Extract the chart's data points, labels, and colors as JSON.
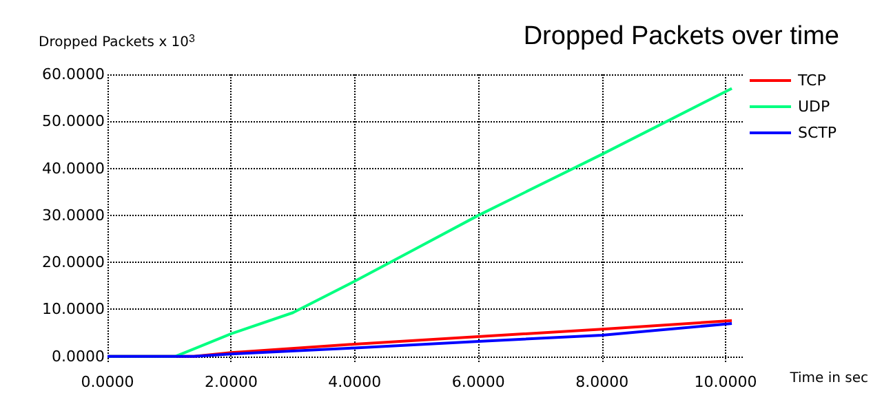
{
  "chart_data": {
    "type": "line",
    "title": "Dropped Packets over time",
    "xlabel": "Time in sec",
    "ylabel": "Dropped Packets x 10$^{3}$",
    "series": [
      {
        "name": "TCP",
        "color": "#ff0000",
        "x": [
          0,
          1.4,
          2,
          4,
          6,
          8,
          10.1
        ],
        "values": [
          0,
          0,
          0.8,
          2.6,
          4.2,
          5.8,
          7.6
        ]
      },
      {
        "name": "UDP",
        "color": "#00ff80",
        "x": [
          0,
          1.1,
          2,
          3,
          4,
          5,
          6,
          8,
          10.1
        ],
        "values": [
          0,
          0,
          4.8,
          9.3,
          16,
          23,
          30,
          43,
          57
        ]
      },
      {
        "name": "SCTP",
        "color": "#0000ff",
        "x": [
          0,
          1.4,
          2,
          4,
          6,
          8,
          10.1
        ],
        "values": [
          0,
          0,
          0.5,
          1.8,
          3.2,
          4.5,
          7
        ]
      }
    ],
    "xlim": [
      0,
      10.3
    ],
    "ylim": [
      -1.5,
      60
    ],
    "xticks": [
      {
        "value": 0,
        "label": "0.0000"
      },
      {
        "value": 2,
        "label": "2.0000"
      },
      {
        "value": 4,
        "label": "4.0000"
      },
      {
        "value": 6,
        "label": "6.0000"
      },
      {
        "value": 8,
        "label": "8.0000"
      },
      {
        "value": 10,
        "label": "10.0000"
      }
    ],
    "yticks": [
      {
        "value": 0,
        "label": "0.0000"
      },
      {
        "value": 10,
        "label": "10.0000"
      },
      {
        "value": 20,
        "label": "20.0000"
      },
      {
        "value": 30,
        "label": "30.0000"
      },
      {
        "value": 40,
        "label": "40.0000"
      },
      {
        "value": 50,
        "label": "50.0000"
      },
      {
        "value": 60,
        "label": "60.0000"
      }
    ],
    "grid": true,
    "legend": "top right",
    "marker": "none",
    "line_style": "solid"
  }
}
